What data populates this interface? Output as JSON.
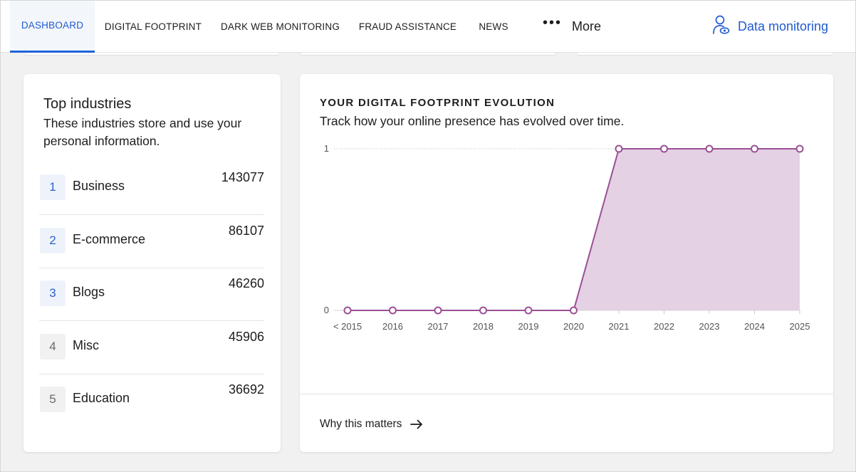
{
  "nav": {
    "tabs": [
      {
        "label": "DASHBOARD",
        "active": true
      },
      {
        "label": "DIGITAL FOOTPRINT",
        "active": false
      },
      {
        "label": "DARK WEB MONITORING",
        "active": false
      },
      {
        "label": "FRAUD ASSISTANCE",
        "active": false
      },
      {
        "label": "NEWS",
        "active": false
      }
    ],
    "more_label": "More",
    "data_monitoring_label": "Data monitoring",
    "accent_color": "#1f5bd1"
  },
  "industries": {
    "title": "Top industries",
    "subtitle": "These industries store and use your personal information.",
    "items": [
      {
        "rank": "1",
        "name": "Business",
        "count": "143077"
      },
      {
        "rank": "2",
        "name": "E-commerce",
        "count": "86107"
      },
      {
        "rank": "3",
        "name": "Blogs",
        "count": "46260"
      },
      {
        "rank": "4",
        "name": "Misc",
        "count": "45906"
      },
      {
        "rank": "5",
        "name": "Education",
        "count": "36692"
      }
    ]
  },
  "evolution": {
    "title": "YOUR DIGITAL FOOTPRINT EVOLUTION",
    "subtitle": "Track how your online presence has evolved over time.",
    "link_label": "Why this matters"
  },
  "chart_data": {
    "type": "area",
    "x": [
      "< 2015",
      "2016",
      "2017",
      "2018",
      "2019",
      "2020",
      "2021",
      "2022",
      "2023",
      "2024",
      "2025"
    ],
    "values": [
      0,
      0,
      0,
      0,
      0,
      0,
      1,
      1,
      1,
      1,
      1
    ],
    "ylim": [
      0,
      1
    ],
    "yticks": [
      0,
      1
    ],
    "grid": "dotted top gridline",
    "line_color": "#9b4f96",
    "fill_color": "#e4d1e4"
  }
}
